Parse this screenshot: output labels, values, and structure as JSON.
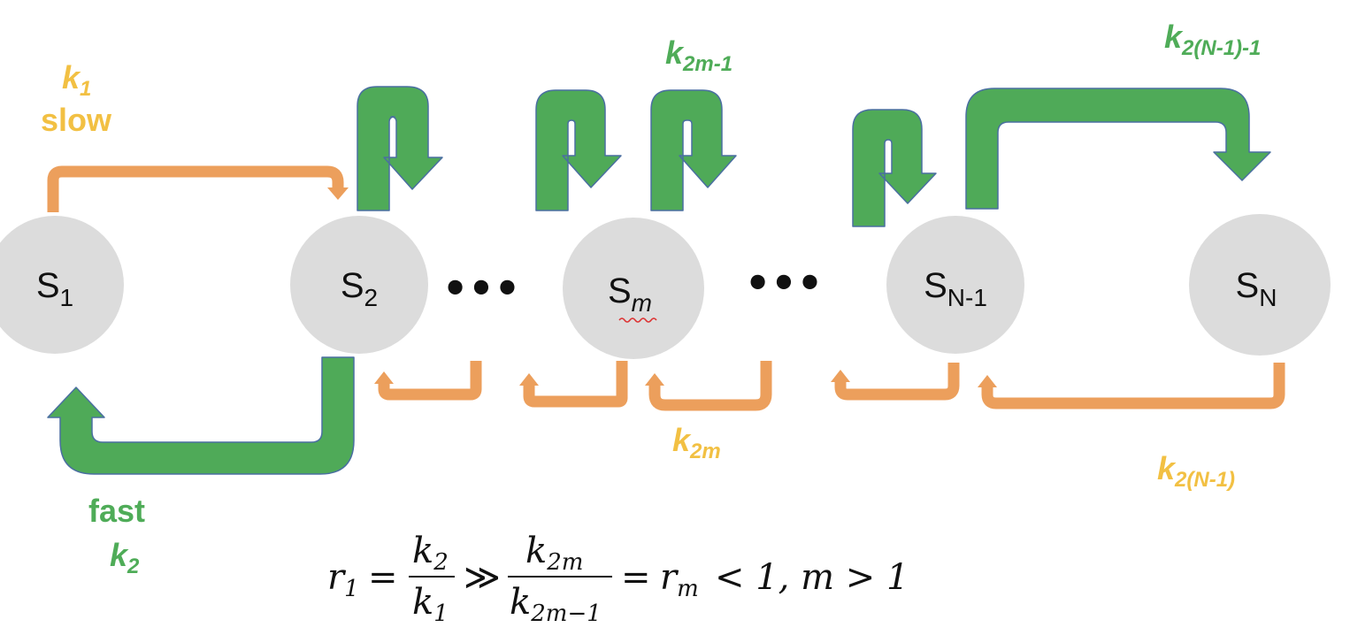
{
  "colors": {
    "fast": "#4faa58",
    "fast_stroke": "#4a6fa0",
    "slow": "#ec9f5c",
    "rate_orange": "#f2c043",
    "rate_green": "#4fac58",
    "node": "#dcdcdc"
  },
  "states": [
    {
      "base": "S",
      "sub": "1"
    },
    {
      "base": "S",
      "sub": "2"
    },
    {
      "base": "S",
      "sub": "m"
    },
    {
      "base": "S",
      "sub": "N-1"
    },
    {
      "base": "S",
      "sub": "N"
    }
  ],
  "ellipsis": "•••",
  "labels": {
    "k1": {
      "base": "k",
      "sub": "1"
    },
    "slow": "slow",
    "fast": "fast",
    "k2": {
      "base": "k",
      "sub": "2"
    },
    "k2m_minus_1": {
      "base": "k",
      "sub": "2m-1"
    },
    "k2m": {
      "base": "k",
      "sub": "2m"
    },
    "k2N1_minus_1": {
      "base": "k",
      "sub": "2(N-1)-1"
    },
    "k2N1": {
      "base": "k",
      "sub": "2(N-1)"
    }
  },
  "equation": {
    "r1": "r",
    "r1_sub": "1",
    "eq1": "=",
    "frac1_num": "k",
    "frac1_num_sub": "2",
    "frac1_den": "k",
    "frac1_den_sub": "1",
    "gg": "≫",
    "frac2_num": "k",
    "frac2_num_sub": "2m",
    "frac2_den": "k",
    "frac2_den_sub": "2m−1",
    "eq2": "=",
    "rm": "r",
    "rm_sub": "m",
    "tail": "< 1, m > 1"
  }
}
